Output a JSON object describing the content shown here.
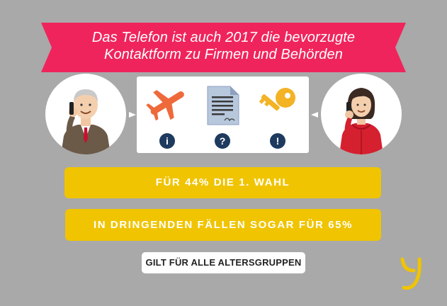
{
  "colors": {
    "background": "#a9a9a9",
    "banner": "#f0245c",
    "pill": "#f0c400",
    "badge": "#1e3a5f",
    "icon_orange": "#ee6a3b",
    "icon_yellow": "#f3b324"
  },
  "headline": {
    "line1": "Das Telefon ist auch 2017 die bevorzugte",
    "line2": "Kontaktform zu Firmen und Behörden"
  },
  "reasons": [
    {
      "icon": "airplane-icon",
      "badge": "i"
    },
    {
      "icon": "document-icon",
      "badge": "?"
    },
    {
      "icon": "key-icon",
      "badge": "!"
    }
  ],
  "stats": {
    "first_choice": "FÜR 44% DIE 1. WAHL",
    "urgent": "IN DRINGENDEN FÄLLEN SOGAR FÜR 65%"
  },
  "note": "GILT FÜR ALLE ALTERSGRUPPEN"
}
